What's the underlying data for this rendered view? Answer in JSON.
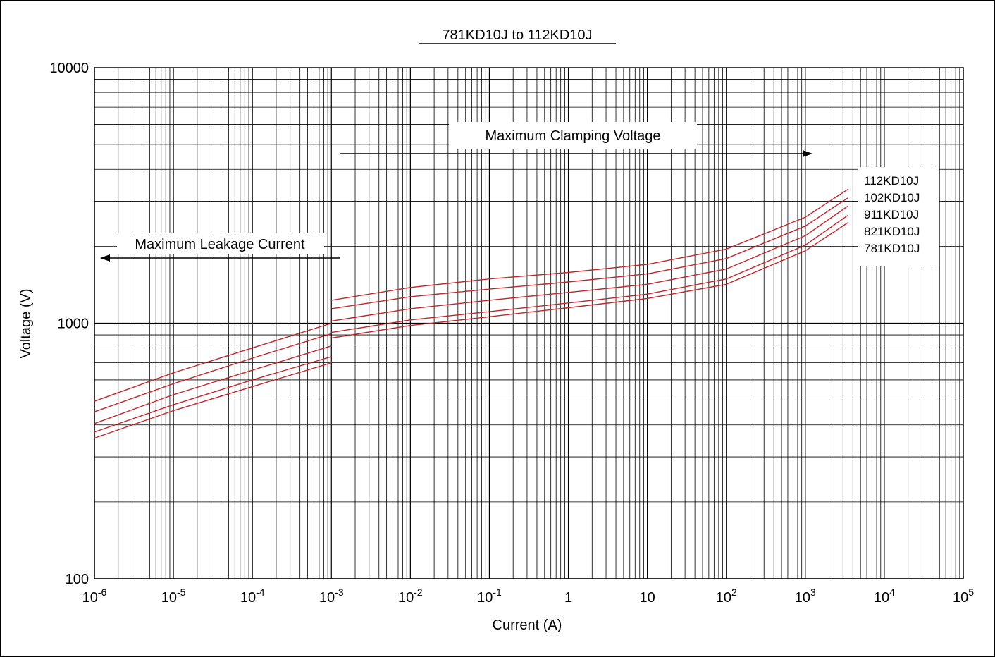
{
  "chart_data": {
    "type": "line",
    "title": "781KD10J to 112KD10J",
    "xlabel": "Current (A)",
    "ylabel": "Voltage (V)",
    "x_scale": "log",
    "y_scale": "log",
    "xlim": [
      1e-06,
      100000
    ],
    "ylim": [
      100,
      10000
    ],
    "grid": true,
    "x_ticks": [
      {
        "base": "10",
        "exp": "-6"
      },
      {
        "base": "10",
        "exp": "-5"
      },
      {
        "base": "10",
        "exp": "-4"
      },
      {
        "base": "10",
        "exp": "-3"
      },
      {
        "base": "10",
        "exp": "-2"
      },
      {
        "base": "10",
        "exp": "-1"
      },
      {
        "base": "1",
        "exp": ""
      },
      {
        "base": "10",
        "exp": ""
      },
      {
        "base": "10",
        "exp": "2"
      },
      {
        "base": "10",
        "exp": "3"
      },
      {
        "base": "10",
        "exp": "4"
      },
      {
        "base": "10",
        "exp": "5"
      }
    ],
    "y_ticks": [
      "10000",
      "1000",
      "100"
    ],
    "annotations": {
      "clamping": "Maximum Clamping Voltage",
      "leakage": "Maximum Leakage Current"
    },
    "legend_position": "right",
    "color": "#c0272d",
    "leakage_series": [
      {
        "name": "112KD10J",
        "x": [
          1e-06,
          1e-05,
          0.0001,
          0.001
        ],
        "y": [
          495,
          640,
          800,
          1000
        ]
      },
      {
        "name": "102KD10J",
        "x": [
          1e-06,
          1e-05,
          0.0001,
          0.001
        ],
        "y": [
          450,
          580,
          730,
          910
        ]
      },
      {
        "name": "911KD10J",
        "x": [
          1e-06,
          1e-05,
          0.0001,
          0.001
        ],
        "y": [
          405,
          525,
          655,
          815
        ]
      },
      {
        "name": "821KD10J",
        "x": [
          1e-06,
          1e-05,
          0.0001,
          0.001
        ],
        "y": [
          375,
          480,
          600,
          740
        ]
      },
      {
        "name": "781KD10J",
        "x": [
          1e-06,
          1e-05,
          0.0001,
          0.001
        ],
        "y": [
          355,
          455,
          565,
          700
        ]
      }
    ],
    "clamping_series": [
      {
        "name": "112KD10J",
        "x": [
          0.001,
          0.01,
          0.1,
          1,
          10,
          100,
          1000,
          3500
        ],
        "y": [
          1230,
          1380,
          1490,
          1580,
          1700,
          1950,
          2600,
          3350
        ]
      },
      {
        "name": "102KD10J",
        "x": [
          0.001,
          0.01,
          0.1,
          1,
          10,
          100,
          1000,
          3500
        ],
        "y": [
          1140,
          1270,
          1360,
          1450,
          1560,
          1790,
          2400,
          3100
        ]
      },
      {
        "name": "911KD10J",
        "x": [
          0.001,
          0.01,
          0.1,
          1,
          10,
          100,
          1000,
          3500
        ],
        "y": [
          1020,
          1140,
          1230,
          1320,
          1420,
          1630,
          2200,
          2880
        ]
      },
      {
        "name": "821KD10J",
        "x": [
          0.001,
          0.01,
          0.1,
          1,
          10,
          100,
          1000,
          3500
        ],
        "y": [
          920,
          1030,
          1110,
          1200,
          1300,
          1490,
          2020,
          2650
        ]
      },
      {
        "name": "781KD10J",
        "x": [
          0.001,
          0.01,
          0.1,
          1,
          10,
          100,
          1000,
          3500
        ],
        "y": [
          875,
          980,
          1060,
          1150,
          1250,
          1420,
          1920,
          2480
        ]
      }
    ]
  }
}
